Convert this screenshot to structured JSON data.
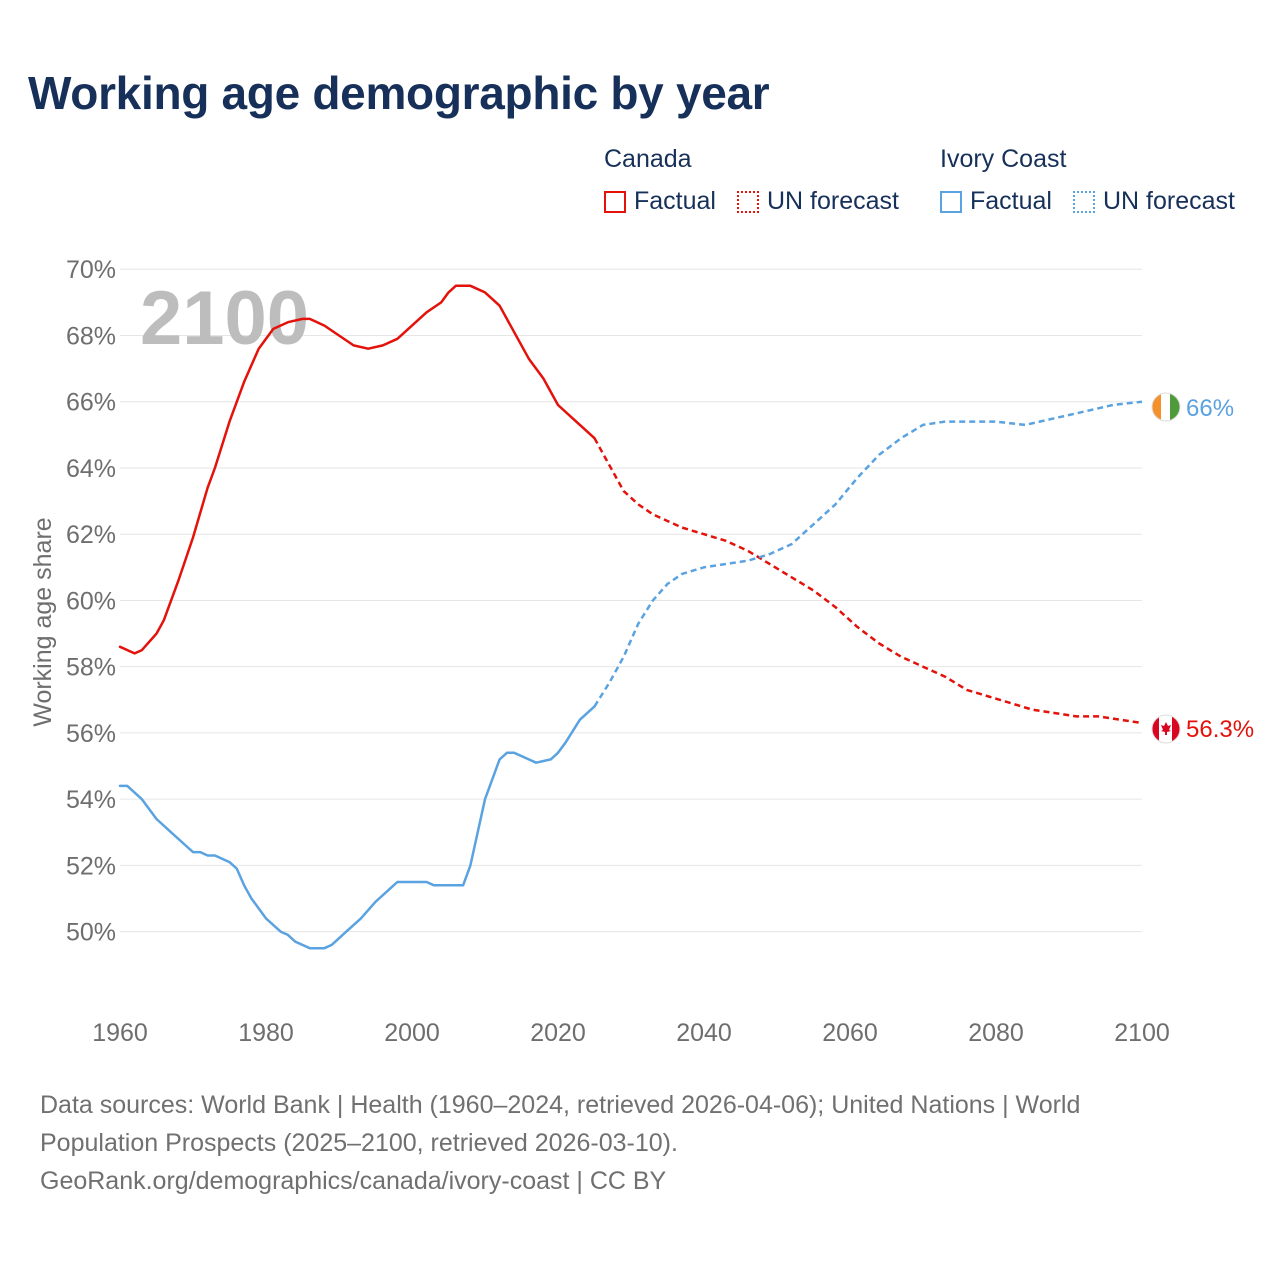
{
  "chart_data": {
    "type": "line",
    "title": "Working age demographic by year",
    "ylabel": "Working age share",
    "xlabel": "",
    "year_watermark": "2100",
    "xlim": [
      1960,
      2100
    ],
    "ylim": [
      48.6,
      70.4
    ],
    "x_ticks": [
      "1960",
      "1980",
      "2000",
      "2020",
      "2040",
      "2060",
      "2080",
      "2100"
    ],
    "x_tick_values": [
      1960,
      1980,
      2000,
      2020,
      2040,
      2060,
      2080,
      2100
    ],
    "y_ticks": [
      "50%",
      "52%",
      "54%",
      "56%",
      "58%",
      "60%",
      "62%",
      "64%",
      "66%",
      "68%",
      "70%"
    ],
    "y_tick_values": [
      50,
      52,
      54,
      56,
      58,
      60,
      62,
      64,
      66,
      68,
      70
    ],
    "grid": true,
    "legend_position": "top-right",
    "legend": {
      "groups": [
        {
          "name": "Canada",
          "items": [
            "Factual",
            "UN forecast"
          ]
        },
        {
          "name": "Ivory Coast",
          "items": [
            "Factual",
            "UN forecast"
          ]
        }
      ]
    },
    "series": [
      {
        "name": "Canada",
        "color": "#e3120b",
        "end_label": "56.3%",
        "factual": {
          "x": [
            1960,
            1962,
            1963,
            1965,
            1966,
            1968,
            1970,
            1972,
            1973,
            1975,
            1977,
            1979,
            1981,
            1983,
            1985,
            1986,
            1988,
            1990,
            1992,
            1994,
            1996,
            1998,
            2000,
            2002,
            2004,
            2005,
            2006,
            2007,
            2008,
            2010,
            2012,
            2014,
            2016,
            2018,
            2020,
            2022,
            2025
          ],
          "y": [
            58.6,
            58.4,
            58.5,
            59.0,
            59.4,
            60.6,
            61.9,
            63.4,
            64.0,
            65.4,
            66.6,
            67.6,
            68.2,
            68.4,
            68.5,
            68.5,
            68.3,
            68.0,
            67.7,
            67.6,
            67.7,
            67.9,
            68.3,
            68.7,
            69.0,
            69.3,
            69.5,
            69.5,
            69.5,
            69.3,
            68.9,
            68.1,
            67.3,
            66.7,
            65.9,
            65.5,
            64.9
          ]
        },
        "forecast": {
          "x": [
            2025,
            2027,
            2029,
            2031,
            2033,
            2035,
            2037,
            2040,
            2043,
            2046,
            2049,
            2052,
            2055,
            2058,
            2061,
            2064,
            2067,
            2070,
            2073,
            2076,
            2079,
            2082,
            2085,
            2088,
            2091,
            2094,
            2097,
            2100
          ],
          "y": [
            64.9,
            64.1,
            63.3,
            62.9,
            62.6,
            62.4,
            62.2,
            62.0,
            61.8,
            61.5,
            61.1,
            60.7,
            60.3,
            59.8,
            59.2,
            58.7,
            58.3,
            58.0,
            57.7,
            57.3,
            57.1,
            56.9,
            56.7,
            56.6,
            56.5,
            56.5,
            56.4,
            56.3
          ]
        }
      },
      {
        "name": "Ivory Coast",
        "color": "#5aa2e0",
        "end_label": "66%",
        "factual": {
          "x": [
            1960,
            1961,
            1963,
            1965,
            1967,
            1969,
            1970,
            1971,
            1972,
            1973,
            1975,
            1976,
            1977,
            1978,
            1980,
            1982,
            1983,
            1984,
            1986,
            1988,
            1989,
            1991,
            1993,
            1995,
            1997,
            1998,
            2000,
            2002,
            2003,
            2005,
            2007,
            2008,
            2010,
            2011,
            2012,
            2013,
            2014,
            2016,
            2017,
            2019,
            2020,
            2021,
            2023,
            2025
          ],
          "y": [
            54.4,
            54.4,
            54.0,
            53.4,
            53.0,
            52.6,
            52.4,
            52.4,
            52.3,
            52.3,
            52.1,
            51.9,
            51.4,
            51.0,
            50.4,
            50.0,
            49.9,
            49.7,
            49.5,
            49.5,
            49.6,
            50.0,
            50.4,
            50.9,
            51.3,
            51.5,
            51.5,
            51.5,
            51.4,
            51.4,
            51.4,
            52.0,
            54.0,
            54.6,
            55.2,
            55.4,
            55.4,
            55.2,
            55.1,
            55.2,
            55.4,
            55.7,
            56.4,
            56.8
          ]
        },
        "forecast": {
          "x": [
            2025,
            2027,
            2029,
            2031,
            2033,
            2035,
            2037,
            2040,
            2043,
            2046,
            2049,
            2052,
            2055,
            2058,
            2061,
            2064,
            2067,
            2070,
            2073,
            2076,
            2080,
            2084,
            2088,
            2092,
            2096,
            2100
          ],
          "y": [
            56.8,
            57.5,
            58.3,
            59.3,
            60.0,
            60.5,
            60.8,
            61.0,
            61.1,
            61.2,
            61.4,
            61.7,
            62.3,
            62.9,
            63.7,
            64.4,
            64.9,
            65.3,
            65.4,
            65.4,
            65.4,
            65.3,
            65.5,
            65.7,
            65.9,
            66.0
          ]
        }
      }
    ]
  },
  "footer": {
    "sources_line1": "Data sources: World Bank | Health (1960–2024, retrieved 2026-04-06); United Nations | World",
    "sources_line2": "Population Prospects (2025–2100, retrieved 2026-03-10).",
    "attribution": "GeoRank.org/demographics/canada/ivory-coast | CC BY"
  },
  "colors": {
    "title": "#17305a",
    "axis_text": "#6e6e6e",
    "grid": "#e6e6e6",
    "watermark": "#bdbdbd",
    "flag_orange": "#f4912b",
    "flag_green": "#4f9a3a",
    "flag_red": "#d80621"
  },
  "icons": {
    "canada": "canada-flag-icon",
    "ivory_coast": "ivory-coast-flag-icon"
  }
}
